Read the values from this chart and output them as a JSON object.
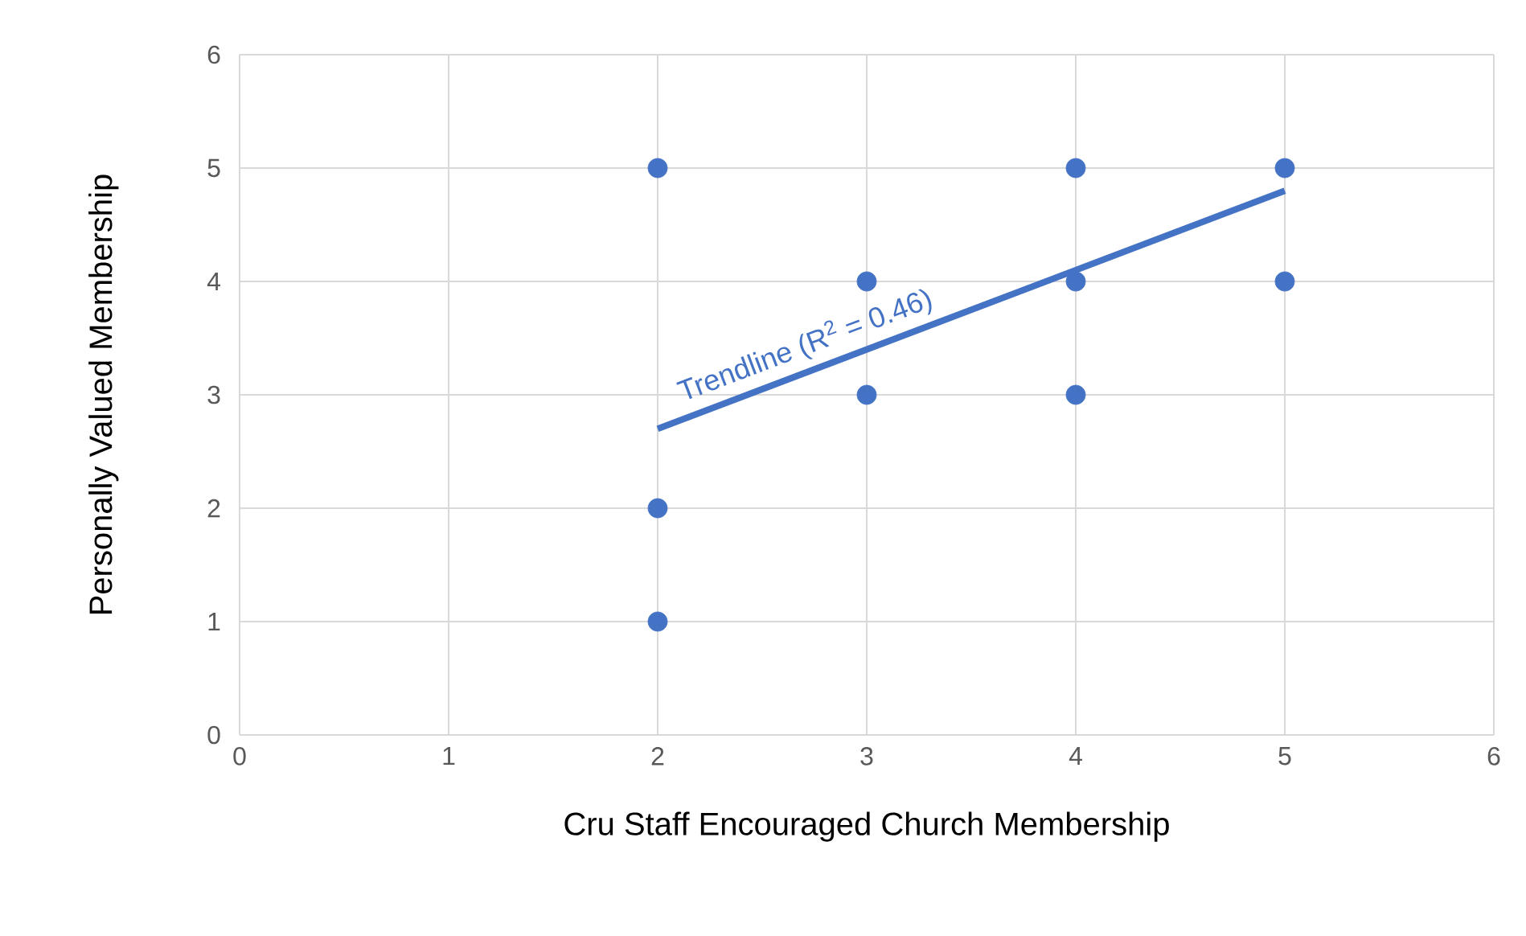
{
  "chart_data": {
    "type": "scatter",
    "xlabel": "Cru Staff Encouraged Church Membership",
    "ylabel": "Personally Valued Membership",
    "xlim": [
      0,
      6
    ],
    "ylim": [
      0,
      6
    ],
    "xticks": [
      0,
      1,
      2,
      3,
      4,
      5,
      6
    ],
    "yticks": [
      0,
      1,
      2,
      3,
      4,
      5,
      6
    ],
    "grid": true,
    "series": [
      {
        "color": "#4472c4",
        "marker": "circle",
        "x": [
          2,
          2,
          2,
          3,
          3,
          4,
          4,
          4,
          5,
          5
        ],
        "values": [
          5,
          2,
          1,
          4,
          3,
          5,
          4,
          3,
          5,
          4
        ]
      },
      {
        "type": "line",
        "marker": "none",
        "color": "#4472c4",
        "x": [
          2,
          5
        ],
        "values": [
          2.7,
          4.8
        ]
      }
    ],
    "annotations": [
      "Trendline (R$^{2}$ = 0.46)"
    ]
  }
}
